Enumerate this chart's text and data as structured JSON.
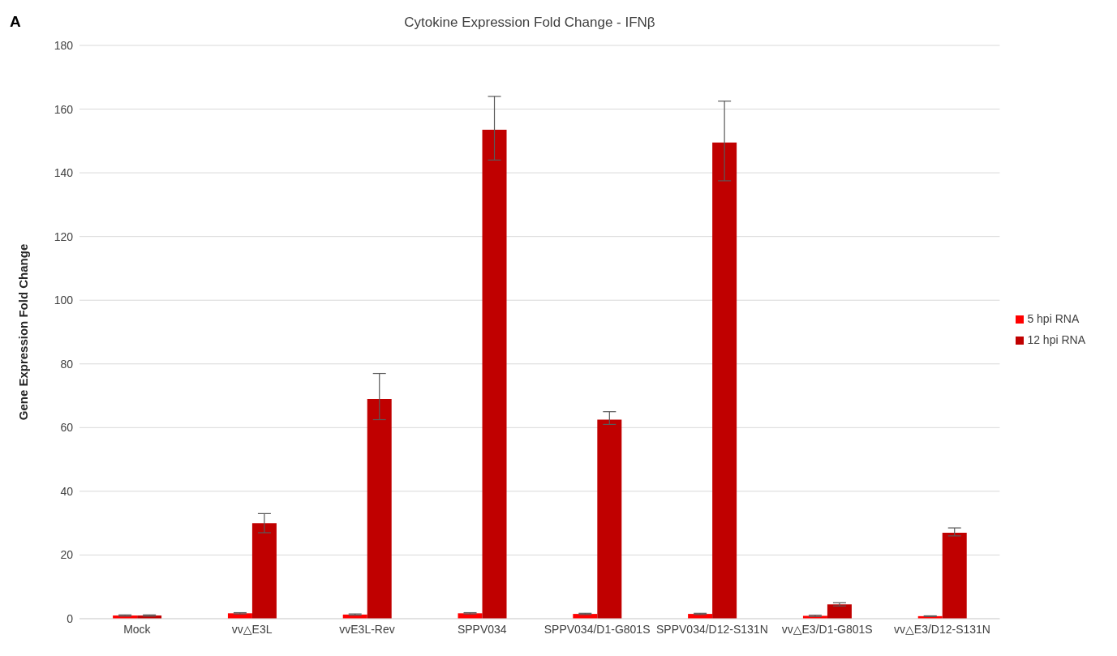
{
  "chart_data": {
    "type": "bar",
    "title": "Cytokine Expression Fold Change - IFNβ",
    "ylabel": "Gene Expression Fold Change",
    "annotations": [
      "A"
    ],
    "categories": [
      "Mock",
      "vv△E3L",
      "vvE3L-Rev",
      "SPPV034",
      "SPPV034/D1-G801S",
      "SPPV034/D12-S131N",
      "vv△E3/D1-G801S",
      "vv△E3/D12-S131N"
    ],
    "series": [
      {
        "name": "5 hpi RNA",
        "color": "#ff0000",
        "values": [
          1,
          1.7,
          1.3,
          1.7,
          1.5,
          1.5,
          0.9,
          0.8
        ],
        "errors": [
          0.2,
          0.2,
          0.2,
          0.2,
          0.2,
          0.2,
          0.2,
          0.1
        ]
      },
      {
        "name": "12 hpi RNA",
        "color": "#c00000",
        "values": [
          1,
          30,
          69,
          153.5,
          62.5,
          149.5,
          4.5,
          27
        ],
        "errors": [
          0.2,
          [
            27,
            33
          ],
          [
            62.5,
            77
          ],
          [
            144,
            164
          ],
          [
            61,
            65
          ],
          [
            137.5,
            162.5
          ],
          [
            4,
            5
          ],
          [
            26,
            28.5
          ]
        ]
      }
    ],
    "ylim": [
      0,
      180
    ],
    "yticks": [
      0,
      20,
      40,
      60,
      80,
      100,
      120,
      140,
      160,
      180
    ],
    "grid": "y",
    "legend": "right"
  }
}
